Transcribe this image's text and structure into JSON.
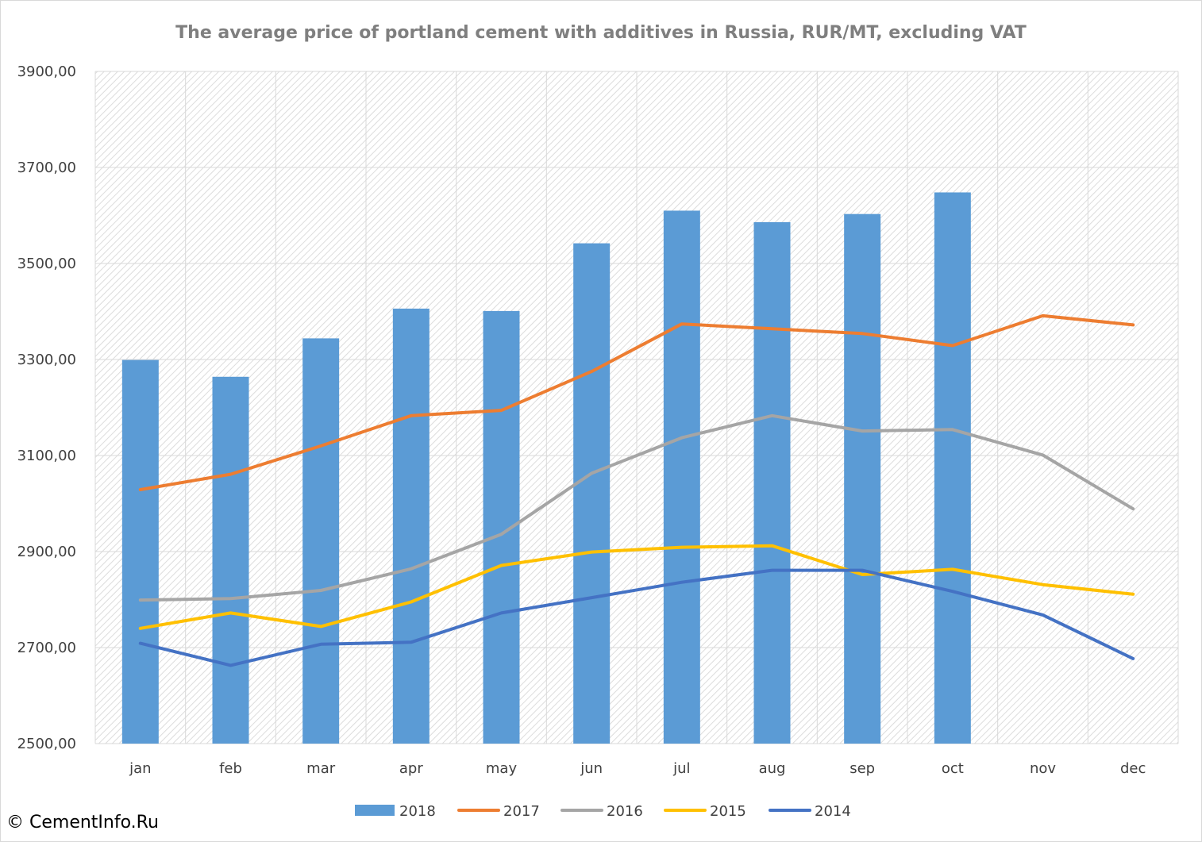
{
  "chart_data": {
    "type": "bar",
    "title": "The average price of portland cement with additives in Russia, RUR/MT,  excluding VAT",
    "categories": [
      "jan",
      "feb",
      "mar",
      "apr",
      "may",
      "jun",
      "jul",
      "aug",
      "sep",
      "oct",
      "nov",
      "dec"
    ],
    "ylim": [
      2500,
      3900
    ],
    "yticks": [
      2500,
      2700,
      2900,
      3100,
      3300,
      3500,
      3700,
      3900
    ],
    "ytick_labels": [
      "2500,00",
      "2700,00",
      "2900,00",
      "3100,00",
      "3300,00",
      "3500,00",
      "3700,00",
      "3900,00"
    ],
    "grid": true,
    "legend_position": "bottom",
    "series": [
      {
        "name": "2018",
        "type": "bar",
        "color": "#5b9bd5",
        "values": [
          3299,
          3264,
          3344,
          3406,
          3401,
          3542,
          3610,
          3586,
          3603,
          3648,
          null,
          null
        ]
      },
      {
        "name": "2017",
        "type": "line",
        "color": "#ed7d31",
        "values": [
          3029,
          3061,
          3120,
          3183,
          3194,
          3275,
          3374,
          3364,
          3354,
          3329,
          3391,
          3372
        ]
      },
      {
        "name": "2016",
        "type": "line",
        "color": "#a5a5a5",
        "values": [
          2799,
          2802,
          2819,
          2864,
          2936,
          3063,
          3137,
          3183,
          3151,
          3154,
          3101,
          2989
        ]
      },
      {
        "name": "2015",
        "type": "line",
        "color": "#ffc000",
        "values": [
          2740,
          2772,
          2744,
          2795,
          2871,
          2899,
          2909,
          2912,
          2852,
          2863,
          2831,
          2811
        ]
      },
      {
        "name": "2014",
        "type": "line",
        "color": "#4472c4",
        "values": [
          2709,
          2663,
          2707,
          2711,
          2772,
          2804,
          2836,
          2861,
          2861,
          2817,
          2768,
          2677
        ]
      }
    ]
  },
  "footer": {
    "copyright": "© CementInfo.Ru"
  }
}
